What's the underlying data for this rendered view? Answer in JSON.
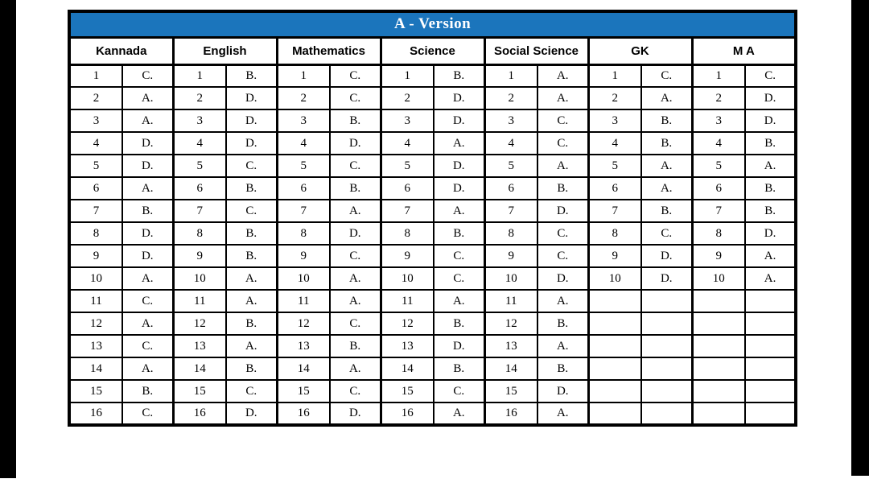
{
  "header": {
    "title": "A - Version",
    "title_bg": "#1b75bc",
    "title_color": "#ffffff"
  },
  "table": {
    "question_numbers": [
      1,
      2,
      3,
      4,
      5,
      6,
      7,
      8,
      9,
      10,
      11,
      12,
      13,
      14,
      15,
      16
    ],
    "subjects": [
      {
        "name": "Kannada",
        "answers": [
          "C.",
          "A.",
          "A.",
          "D.",
          "D.",
          "A.",
          "B.",
          "D.",
          "D.",
          "A.",
          "C.",
          "A.",
          "C.",
          "A.",
          "B.",
          "C."
        ]
      },
      {
        "name": "English",
        "answers": [
          "B.",
          "D.",
          "D.",
          "D.",
          "C.",
          "B.",
          "C.",
          "B.",
          "B.",
          "A.",
          "A.",
          "B.",
          "A.",
          "B.",
          "C.",
          "D."
        ]
      },
      {
        "name": "Mathematics",
        "answers": [
          "C.",
          "C.",
          "B.",
          "D.",
          "C.",
          "B.",
          "A.",
          "D.",
          "C.",
          "A.",
          "A.",
          "C.",
          "B.",
          "A.",
          "C.",
          "D."
        ]
      },
      {
        "name": "Science",
        "answers": [
          "B.",
          "D.",
          "D.",
          "A.",
          "D.",
          "D.",
          "A.",
          "B.",
          "C.",
          "C.",
          "A.",
          "B.",
          "D.",
          "B.",
          "C.",
          "A."
        ]
      },
      {
        "name": "Social Science",
        "answers": [
          "A.",
          "A.",
          "C.",
          "C.",
          "A.",
          "B.",
          "D.",
          "C.",
          "C.",
          "D.",
          "A.",
          "B.",
          "A.",
          "B.",
          "D.",
          "A."
        ]
      },
      {
        "name": "GK",
        "answers": [
          "C.",
          "A.",
          "B.",
          "B.",
          "A.",
          "A.",
          "B.",
          "C.",
          "D.",
          "D.",
          "",
          "",
          "",
          "",
          "",
          ""
        ]
      },
      {
        "name": "M A",
        "answers": [
          "C.",
          "D.",
          "D.",
          "B.",
          "A.",
          "B.",
          "B.",
          "D.",
          "A.",
          "A.",
          "",
          "",
          "",
          "",
          "",
          ""
        ]
      }
    ]
  }
}
